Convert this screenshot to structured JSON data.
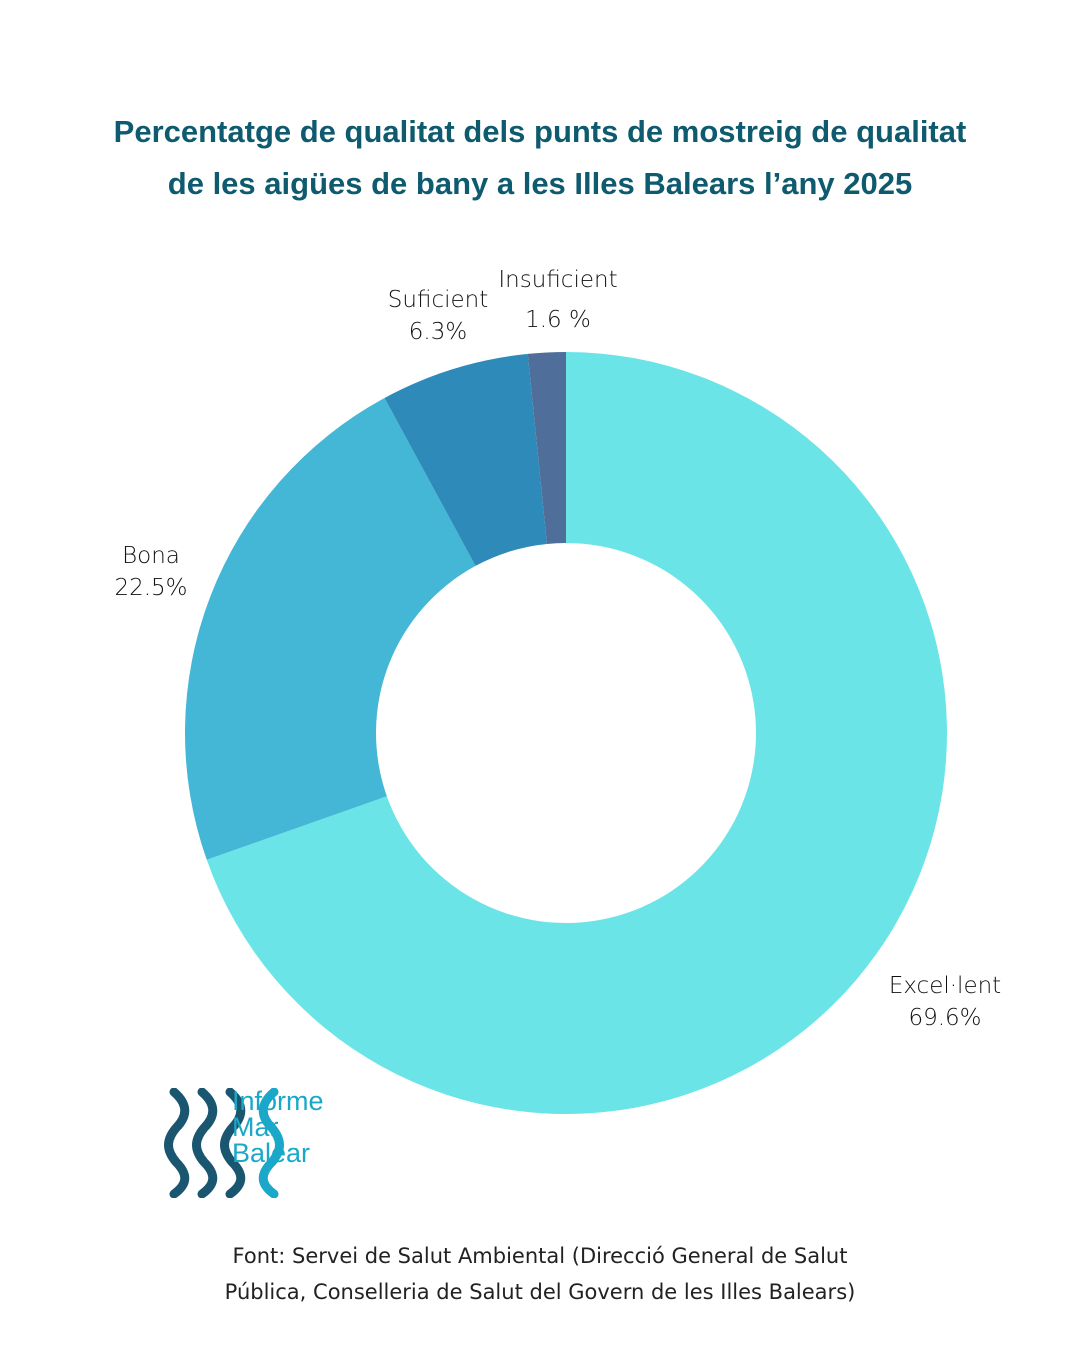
{
  "title": [
    "Percentatge de qualitat dels punts de mostreig de qualitat",
    "de les aigües de bany a les Illes Balears l’any 2025"
  ],
  "chart_data": {
    "type": "pie",
    "variant": "donut",
    "title": "Percentatge de qualitat dels punts de mostreig de qualitat de les aigües de bany a les Illes Balears l’any 2025",
    "start": "top, clockwise",
    "slices": [
      {
        "name": "Excel·lent",
        "value": 69.6,
        "label": "69.6%",
        "color": "#6be4e8"
      },
      {
        "name": "Bona",
        "value": 22.5,
        "label": "22.5%",
        "color": "#44b6d6"
      },
      {
        "name": "Suficient",
        "value": 6.3,
        "label": "6.3%",
        "color": "#2e8bb9"
      },
      {
        "name": "Insuficient",
        "value": 1.6,
        "label": "1.6 %",
        "color": "#4f6e9a"
      }
    ]
  },
  "logo": {
    "text": [
      "Informe",
      "Mar",
      "Balear"
    ],
    "colors": {
      "dark": "#1b5670",
      "light": "#1ba8c8"
    }
  },
  "source": [
    "Font: Servei de Salut Ambiental (Direcció General de Salut",
    "Pública, Conselleria de Salut del Govern de les Illes Balears)"
  ]
}
